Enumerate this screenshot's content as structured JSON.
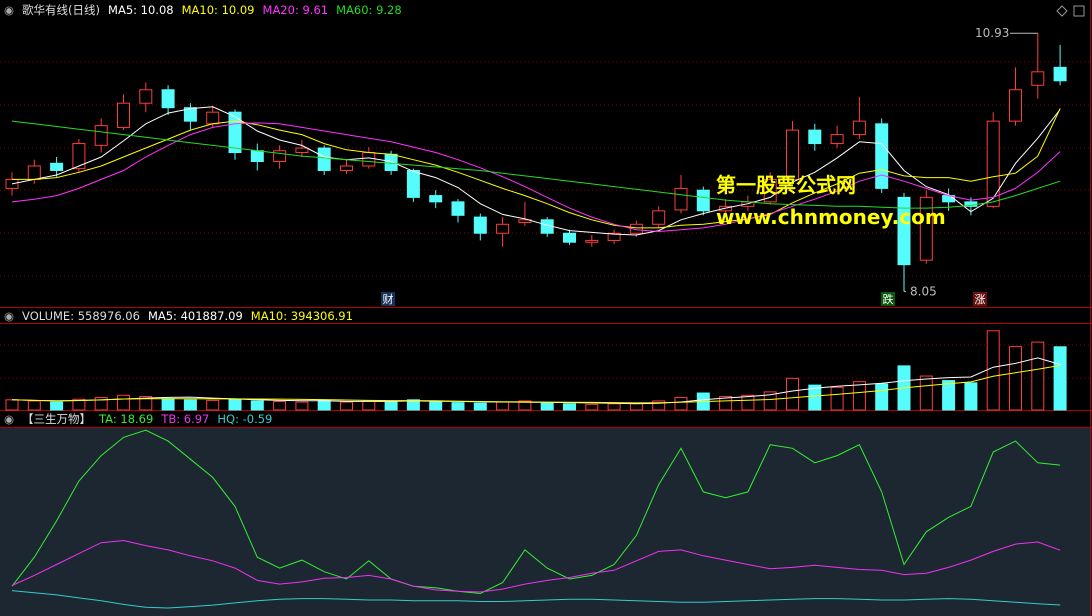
{
  "header": {
    "title": "歌华有线(日线)"
  },
  "chart_data": [
    {
      "type": "candlestick",
      "ylim": [
        7.9,
        11.1
      ],
      "up_color": "#ff3c3c",
      "down_color": "#54fcfc",
      "open": [
        9.2,
        9.3,
        9.48,
        9.42,
        9.68,
        9.88,
        10.15,
        10.3,
        10.1,
        9.92,
        10.05,
        9.62,
        9.5,
        9.6,
        9.65,
        9.4,
        9.45,
        9.58,
        9.4,
        9.12,
        9.05,
        8.88,
        8.7,
        8.82,
        8.85,
        8.7,
        8.6,
        8.62,
        8.7,
        8.8,
        8.96,
        9.18,
        8.95,
        9.0,
        9.05,
        9.3,
        9.85,
        9.7,
        9.8,
        9.92,
        9.1,
        8.4,
        9.12,
        9.05,
        9.0,
        9.95,
        10.35,
        10.55
      ],
      "high": [
        9.38,
        9.52,
        9.55,
        9.75,
        9.98,
        10.25,
        10.38,
        10.35,
        10.15,
        10.12,
        10.08,
        9.7,
        9.68,
        9.74,
        9.68,
        9.52,
        9.66,
        9.62,
        9.42,
        9.18,
        9.08,
        8.92,
        8.88,
        9.05,
        8.88,
        8.74,
        8.68,
        8.74,
        8.84,
        9.0,
        9.35,
        9.22,
        9.08,
        9.12,
        9.38,
        9.95,
        9.92,
        9.9,
        10.22,
        9.98,
        9.15,
        9.18,
        9.2,
        9.1,
        10.05,
        10.55,
        10.93,
        10.8
      ],
      "low": [
        9.12,
        9.25,
        9.33,
        9.38,
        9.6,
        9.85,
        10.05,
        10.02,
        9.85,
        9.88,
        9.52,
        9.4,
        9.42,
        9.55,
        9.35,
        9.36,
        9.42,
        9.35,
        9.05,
        8.98,
        8.82,
        8.62,
        8.55,
        8.78,
        8.66,
        8.57,
        8.55,
        8.58,
        8.66,
        8.76,
        8.92,
        8.9,
        8.88,
        8.95,
        9.02,
        9.25,
        9.62,
        9.65,
        9.75,
        9.15,
        8.05,
        8.36,
        8.95,
        8.9,
        8.98,
        9.9,
        10.2,
        10.35
      ],
      "close": [
        9.3,
        9.45,
        9.4,
        9.7,
        9.9,
        10.15,
        10.3,
        10.1,
        9.95,
        10.05,
        9.6,
        9.5,
        9.62,
        9.65,
        9.4,
        9.45,
        9.6,
        9.4,
        9.1,
        9.05,
        8.9,
        8.7,
        8.8,
        8.85,
        8.7,
        8.6,
        8.62,
        8.7,
        8.8,
        8.95,
        9.2,
        8.95,
        9.0,
        9.05,
        9.3,
        9.85,
        9.7,
        9.8,
        9.95,
        9.2,
        8.35,
        9.1,
        9.05,
        9.0,
        9.95,
        10.3,
        10.5,
        10.4
      ],
      "series": [
        {
          "name": "MA5",
          "color": "#ffffff",
          "values": [
            9.25,
            9.3,
            9.35,
            9.45,
            9.55,
            9.73,
            9.92,
            10.04,
            10.09,
            10.11,
            10.0,
            9.84,
            9.74,
            9.68,
            9.55,
            9.52,
            9.54,
            9.5,
            9.39,
            9.32,
            9.21,
            9.03,
            8.91,
            8.86,
            8.79,
            8.73,
            8.71,
            8.69,
            8.68,
            8.73,
            8.85,
            8.92,
            8.98,
            9.03,
            9.1,
            9.27,
            9.38,
            9.54,
            9.72,
            9.7,
            9.4,
            9.22,
            9.13,
            8.94,
            9.09,
            9.48,
            9.76,
            10.08
          ]
        },
        {
          "name": "MA10",
          "color": "#ffff00",
          "values": [
            9.3,
            9.3,
            9.32,
            9.38,
            9.45,
            9.55,
            9.65,
            9.75,
            9.85,
            9.92,
            9.95,
            9.91,
            9.85,
            9.8,
            9.7,
            9.63,
            9.6,
            9.58,
            9.52,
            9.46,
            9.38,
            9.29,
            9.2,
            9.12,
            9.03,
            8.93,
            8.85,
            8.79,
            8.76,
            8.76,
            8.79,
            8.8,
            8.83,
            8.86,
            8.91,
            9.04,
            9.15,
            9.25,
            9.37,
            9.41,
            9.34,
            9.32,
            9.32,
            9.28,
            9.33,
            9.37,
            9.56,
            10.09
          ]
        },
        {
          "name": "MA20",
          "color": "#ff33ff",
          "values": [
            9.05,
            9.08,
            9.12,
            9.2,
            9.3,
            9.4,
            9.55,
            9.68,
            9.8,
            9.88,
            9.92,
            9.93,
            9.92,
            9.88,
            9.84,
            9.8,
            9.76,
            9.72,
            9.66,
            9.6,
            9.52,
            9.43,
            9.33,
            9.22,
            9.1,
            8.98,
            8.88,
            8.8,
            8.74,
            8.72,
            8.74,
            8.76,
            8.8,
            8.86,
            8.92,
            9.0,
            9.08,
            9.17,
            9.28,
            9.35,
            9.28,
            9.2,
            9.12,
            9.07,
            9.1,
            9.2,
            9.38,
            9.61
          ]
        },
        {
          "name": "MA60",
          "color": "#22dd22",
          "values": [
            9.95,
            9.92,
            9.89,
            9.86,
            9.83,
            9.8,
            9.77,
            9.74,
            9.71,
            9.68,
            9.65,
            9.62,
            9.59,
            9.56,
            9.54,
            9.52,
            9.5,
            9.48,
            9.46,
            9.44,
            9.42,
            9.4,
            9.37,
            9.34,
            9.31,
            9.28,
            9.25,
            9.22,
            9.19,
            9.16,
            9.13,
            9.1,
            9.07,
            9.05,
            9.03,
            9.02,
            9.01,
            9.0,
            9.0,
            8.99,
            8.98,
            8.98,
            8.99,
            9.01,
            9.05,
            9.12,
            9.2,
            9.28
          ]
        }
      ],
      "markers": [
        "财",
        "跌",
        "涨"
      ],
      "watermark": [
        "第一股票公式网",
        "www.chnmoney.com"
      ]
    },
    {
      "type": "bar",
      "title": "VOLUME",
      "ylim": [
        0,
        760000
      ],
      "values": [
        90000,
        80000,
        70000,
        95000,
        110000,
        130000,
        120000,
        100000,
        90000,
        85000,
        95000,
        80000,
        75000,
        70000,
        85000,
        70000,
        80000,
        75000,
        90000,
        70000,
        65000,
        60000,
        70000,
        80000,
        60000,
        55000,
        50000,
        55000,
        60000,
        80000,
        110000,
        150000,
        120000,
        130000,
        160000,
        280000,
        220000,
        200000,
        250000,
        230000,
        390000,
        300000,
        260000,
        240000,
        700000,
        560000,
        600000,
        558976.06
      ],
      "series": [
        {
          "name": "MA5",
          "color": "#ffffff",
          "values": [
            90000,
            85000,
            80000,
            84000,
            89000,
            97000,
            105000,
            111000,
            114000,
            105000,
            98000,
            90000,
            85000,
            81000,
            81000,
            76000,
            76000,
            76000,
            80000,
            77000,
            76000,
            72000,
            71000,
            69000,
            67000,
            65000,
            63000,
            60000,
            56000,
            60000,
            71000,
            91000,
            106000,
            118000,
            134000,
            168000,
            192000,
            210000,
            222000,
            236000,
            258000,
            274000,
            286000,
            292000,
            378000,
            412000,
            460000,
            401887.09
          ]
        },
        {
          "name": "MA10",
          "color": "#ffff00",
          "values": [
            90000,
            85000,
            80000,
            84000,
            89000,
            97000,
            99000,
            100000,
            100000,
            98000,
            98000,
            97000,
            96000,
            94000,
            92000,
            88000,
            85000,
            83000,
            83000,
            81000,
            78000,
            75000,
            73000,
            72000,
            70000,
            69000,
            67000,
            65000,
            63000,
            64000,
            68000,
            74000,
            80000,
            86000,
            93000,
            108000,
            124000,
            138000,
            155000,
            172000,
            195000,
            215000,
            232000,
            248000,
            298000,
            330000,
            360000,
            394306.91
          ]
        }
      ]
    },
    {
      "type": "line",
      "title": "【三生万物】",
      "ylim": [
        -2.1,
        23.8
      ],
      "series": [
        {
          "name": "TA",
          "color": "#33ee33",
          "values": [
            2,
            6,
            11,
            16.5,
            20,
            22.5,
            23.5,
            22,
            19.5,
            17,
            13,
            6,
            4.5,
            5.6,
            4,
            3,
            5.5,
            3,
            2,
            1.8,
            1.3,
            1,
            2.5,
            7,
            4.5,
            3,
            3.5,
            5,
            9,
            16,
            21,
            15,
            14.2,
            15,
            21.5,
            21,
            19,
            20,
            21.5,
            15,
            5,
            9.5,
            11.5,
            13,
            20.5,
            22,
            19,
            18.69
          ]
        },
        {
          "name": "TB",
          "color": "#ee33ee",
          "values": [
            2.1,
            3.5,
            5,
            6.5,
            8,
            8.3,
            7.6,
            7,
            6.2,
            5.5,
            4.5,
            2.8,
            2.3,
            2.6,
            3.1,
            3.2,
            3.5,
            3.0,
            2.0,
            1.5,
            1.3,
            1.2,
            1.6,
            2.3,
            2.8,
            3.2,
            3.8,
            4.2,
            5.5,
            6.8,
            7,
            6.2,
            5.6,
            5,
            4.4,
            4.6,
            4.9,
            4.6,
            4.3,
            4.2,
            3.6,
            3.8,
            4.6,
            5.6,
            6.8,
            7.8,
            8.1,
            6.97
          ]
        },
        {
          "name": "HQ",
          "color": "#33cccc",
          "values": [
            1.4,
            1.1,
            0.8,
            0.4,
            0,
            -0.5,
            -0.9,
            -1,
            -0.8,
            -0.6,
            -0.3,
            0,
            0.2,
            0.3,
            0.3,
            0.2,
            0.1,
            0.1,
            0,
            0,
            0,
            -0.1,
            -0.1,
            0,
            0.1,
            0.2,
            0.2,
            0.1,
            0,
            -0.1,
            -0.2,
            -0.2,
            -0.1,
            0,
            0.1,
            0.2,
            0.3,
            0.3,
            0.2,
            0.1,
            0.1,
            0.2,
            0.3,
            0.2,
            0,
            -0.2,
            -0.4,
            -0.59
          ]
        }
      ]
    }
  ]
}
